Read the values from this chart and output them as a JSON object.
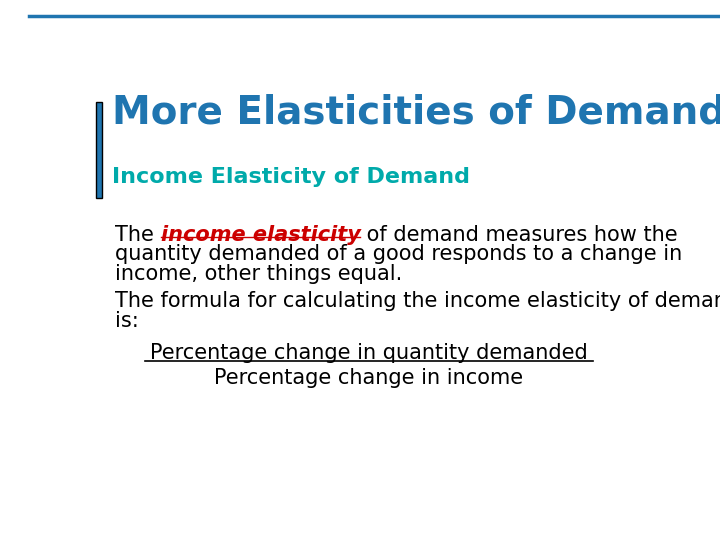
{
  "background_color": "#ffffff",
  "title": "More Elasticities of Demand",
  "title_color": "#1F75B0",
  "title_fontsize": 28,
  "accent_line_color": "#1F75B0",
  "subtitle": "Income Elasticity of Demand",
  "subtitle_color": "#00AAAA",
  "subtitle_fontsize": 16,
  "body1_prefix": "The ",
  "body1_highlight": "income elasticity",
  "body1_highlight_color": "#CC0000",
  "body1_line1_after": " of demand measures how the",
  "body1_line2": "quantity demanded of a good responds to a change in",
  "body1_line3": "income, other things equal.",
  "body_fontsize": 15,
  "body_color": "#000000",
  "body2_line1": "The formula for calculating the income elasticity of demand",
  "body2_line2": "is:",
  "formula_numerator": "Percentage change in quantity demanded",
  "formula_denominator": "Percentage change in income",
  "formula_fontsize": 15,
  "formula_color": "#000000"
}
